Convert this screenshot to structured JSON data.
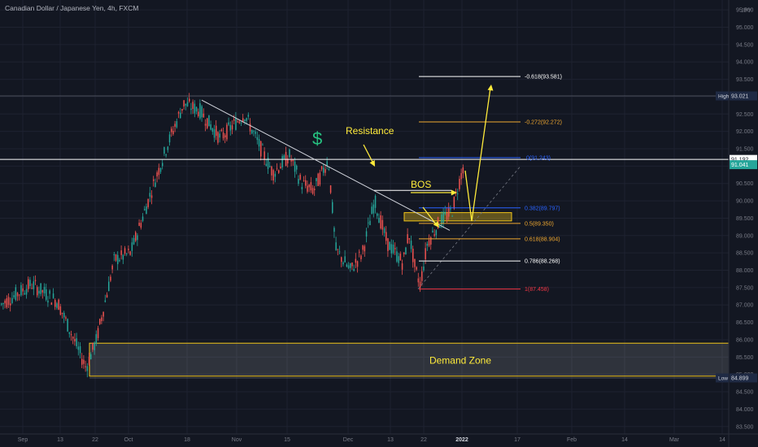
{
  "header": {
    "title": "Canadian Dollar / Japanese Yen, 4h, FXCM",
    "badge": "⌧",
    "currency": "JPY"
  },
  "axes": {
    "y_ticks": [
      "95.500",
      "95.000",
      "94.500",
      "94.000",
      "93.500",
      "93.000",
      "92.500",
      "92.000",
      "91.500",
      "91.000",
      "90.500",
      "90.000",
      "89.500",
      "89.000",
      "88.500",
      "88.000",
      "87.500",
      "87.000",
      "86.500",
      "86.000",
      "85.500",
      "85.000",
      "84.500",
      "84.000",
      "83.500"
    ],
    "x_ticks": [
      "Sep",
      "13",
      "22",
      "Oct",
      "18",
      "Nov",
      "15",
      "Dec",
      "13",
      "22",
      "2022",
      "17",
      "Feb",
      "14",
      "Mar",
      "14"
    ]
  },
  "price_tags": [
    {
      "label": "High",
      "value": "93.021",
      "color": "#1f2a44",
      "text": "#d1d4dc"
    },
    {
      "label": "",
      "value": "91.192",
      "color": "#ffffff",
      "text": "#131722"
    },
    {
      "label": "",
      "value": "91.041",
      "color": "#26a69a",
      "text": "#ffffff"
    },
    {
      "label": "Low",
      "value": "84.899",
      "color": "#1f2a44",
      "text": "#d1d4dc"
    }
  ],
  "annotations": {
    "dollar": "$",
    "resistance": "Resistance",
    "bos": "BOS",
    "demand_zone": "Demand Zone"
  },
  "fib_levels": [
    {
      "label": "-0.618(93.581)",
      "price": 93.581,
      "color": "#ffffff"
    },
    {
      "label": "-0.272(92.272)",
      "price": 92.272,
      "color": "#f0a830"
    },
    {
      "label": "0(91.243)",
      "price": 91.243,
      "color": "#2962ff"
    },
    {
      "label": "0.382(89.797)",
      "price": 89.797,
      "color": "#2962ff"
    },
    {
      "label": "0.5(89.350)",
      "price": 89.35,
      "color": "#f0a830"
    },
    {
      "label": "0.618(88.904)",
      "price": 88.904,
      "color": "#f0a830"
    },
    {
      "label": "0.786(88.268)",
      "price": 88.268,
      "color": "#ffffff"
    },
    {
      "label": "1(87.458)",
      "price": 87.458,
      "color": "#f23645"
    }
  ],
  "colors": {
    "up": "#26a69a",
    "down": "#ef5350",
    "accent": "#ffeb3b",
    "grid": "#1e2230",
    "axis_text": "#787b86"
  },
  "chart_data": {
    "type": "candlestick",
    "title": "Canadian Dollar / Japanese Yen, 4h, FXCM",
    "ylim": [
      83.3,
      96.0
    ],
    "y_scale": "linear",
    "grid": true,
    "high": 93.021,
    "low": 84.899,
    "last_price": 91.041,
    "series": [
      {
        "name": "Price path (approx.)",
        "dates": [
          "Sep",
          "13",
          "22",
          "Oct",
          "18",
          "Nov",
          "15",
          "Dec",
          "13",
          "22",
          "2022"
        ],
        "values": [
          87.3,
          87.5,
          85.6,
          88.3,
          92.7,
          92.1,
          91.2,
          88.0,
          90.1,
          87.7,
          91.2
        ]
      }
    ],
    "horizontal_lines": [
      {
        "price": 93.021,
        "label": "High"
      },
      {
        "price": 91.192
      },
      {
        "price": 84.899,
        "label": "Low"
      }
    ],
    "zones": [
      {
        "name": "Demand Zone",
        "from": 84.95,
        "to": 85.9
      }
    ]
  }
}
